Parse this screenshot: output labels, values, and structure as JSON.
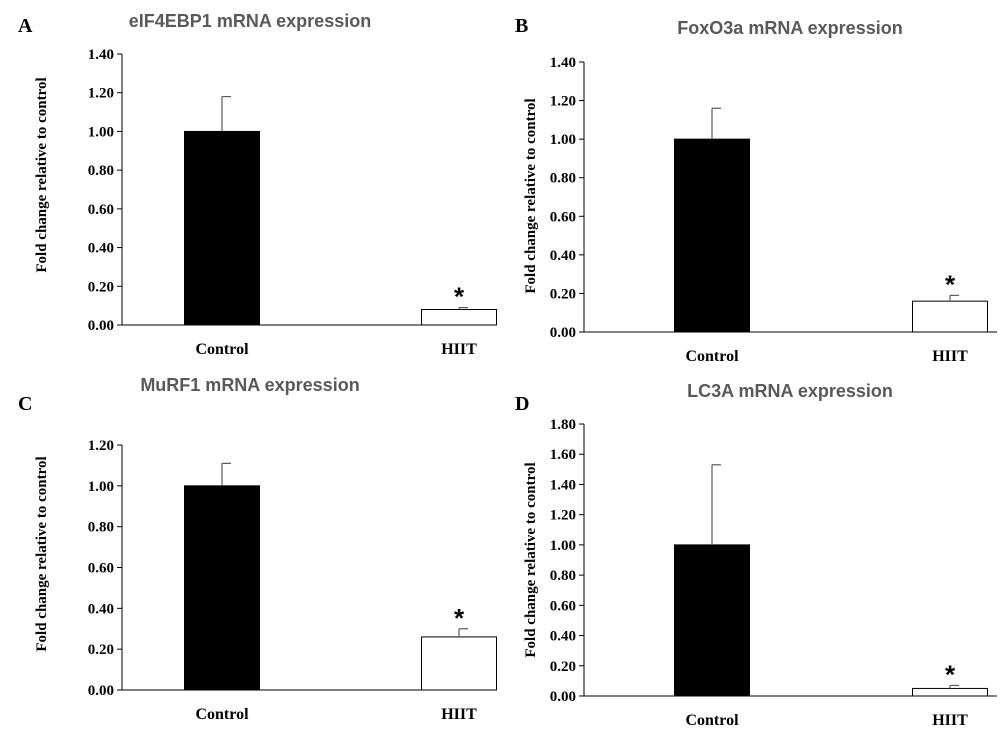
{
  "chart_data": [
    {
      "panel": "A",
      "type": "bar",
      "title": "eIF4EBP1 mRNA expression",
      "ylabel": "Fold change relative to control",
      "categories": [
        "Control",
        "HIIT"
      ],
      "values": [
        1.0,
        0.08
      ],
      "errors": [
        0.18,
        0.01
      ],
      "significance": [
        "",
        "*"
      ],
      "bar_colors": [
        "#000000",
        "#ffffff"
      ],
      "ylim": [
        0,
        1.4
      ],
      "yticks": [
        "0.00",
        "0.20",
        "0.40",
        "0.60",
        "0.80",
        "1.00",
        "1.20",
        "1.40"
      ]
    },
    {
      "panel": "B",
      "type": "bar",
      "title": "FoxO3a mRNA expression",
      "ylabel": "Fold change relative to control",
      "categories": [
        "Control",
        "HIIT"
      ],
      "values": [
        1.0,
        0.16
      ],
      "errors": [
        0.16,
        0.03
      ],
      "significance": [
        "",
        "*"
      ],
      "bar_colors": [
        "#000000",
        "#ffffff"
      ],
      "ylim": [
        0,
        1.4
      ],
      "yticks": [
        "0.00",
        "0.20",
        "0.40",
        "0.60",
        "0.80",
        "1.00",
        "1.20",
        "1.40"
      ]
    },
    {
      "panel": "C",
      "type": "bar",
      "title": "MuRF1 mRNA expression",
      "ylabel": "Fold change relative to control",
      "categories": [
        "Control",
        "HIIT"
      ],
      "values": [
        1.0,
        0.26
      ],
      "errors": [
        0.11,
        0.04
      ],
      "significance": [
        "",
        "*"
      ],
      "bar_colors": [
        "#000000",
        "#ffffff"
      ],
      "ylim": [
        0,
        1.2
      ],
      "yticks": [
        "0.00",
        "0.20",
        "0.40",
        "0.60",
        "0.80",
        "1.00",
        "1.20"
      ]
    },
    {
      "panel": "D",
      "type": "bar",
      "title": "LC3A mRNA expression",
      "ylabel": "Fold change relative to control",
      "categories": [
        "Control",
        "HIIT"
      ],
      "values": [
        1.0,
        0.05
      ],
      "errors": [
        0.53,
        0.02
      ],
      "significance": [
        "",
        "*"
      ],
      "bar_colors": [
        "#000000",
        "#ffffff"
      ],
      "ylim": [
        0,
        1.8
      ],
      "yticks": [
        "0.00",
        "0.20",
        "0.40",
        "0.60",
        "0.80",
        "1.00",
        "1.20",
        "1.40",
        "1.60",
        "1.80"
      ]
    }
  ]
}
